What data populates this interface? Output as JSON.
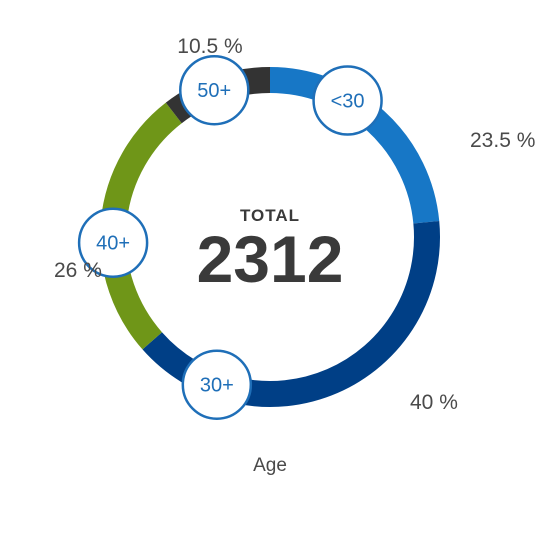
{
  "chart_data": {
    "type": "pie",
    "style": "donut",
    "center": {
      "title": "TOTAL",
      "total": "2312"
    },
    "xlabel": "Age",
    "slices": [
      {
        "label": "<30",
        "value": 23.5,
        "value_label": "23.5 %",
        "color": "#1777c6"
      },
      {
        "label": "30+",
        "value": 40,
        "value_label": "40 %",
        "color": "#003f86"
      },
      {
        "label": "40+",
        "value": 26,
        "value_label": "26 %",
        "color": "#6f9618"
      },
      {
        "label": "50+",
        "value": 10.5,
        "value_label": "10.5 %",
        "color": "#333333"
      }
    ],
    "marker_color": "#1f6fb8"
  }
}
